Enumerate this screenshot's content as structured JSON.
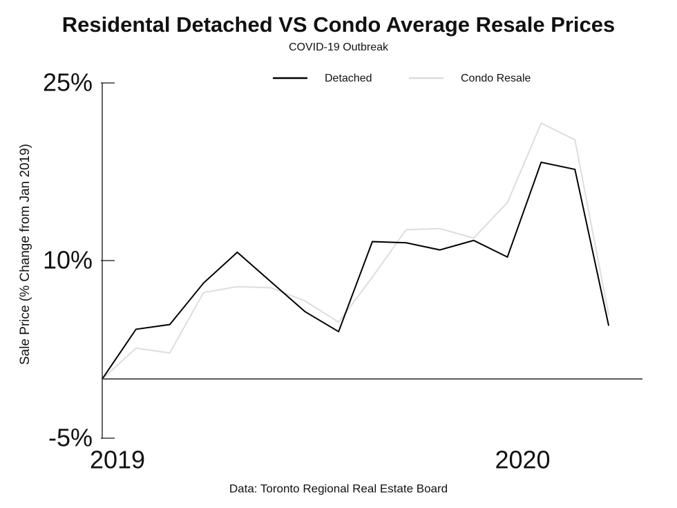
{
  "chart_data": {
    "type": "line",
    "title": "Residental Detached VS Condo Average Resale Prices",
    "subtitle": "COVID-19 Outbreak",
    "y_label": "Sale Price (% Change from Jan 2019)",
    "source": "Data: Toronto Regional Real Estate Board",
    "x": [
      0,
      1,
      2,
      3,
      4,
      5,
      6,
      7,
      8,
      9,
      10,
      11,
      12,
      13,
      14,
      15
    ],
    "xlim": [
      0,
      16
    ],
    "xticks": [
      {
        "value": 0,
        "label": "2019"
      },
      {
        "value": 12,
        "label": "2020"
      }
    ],
    "ylim": [
      -5,
      25
    ],
    "yticks": [
      {
        "value": -5,
        "label": "-5%"
      },
      {
        "value": 10,
        "label": "10%"
      },
      {
        "value": 25,
        "label": "25%"
      }
    ],
    "legend": "top",
    "series": [
      {
        "name": "Detached",
        "color": "#000000",
        "values": [
          0,
          4.2,
          4.6,
          8.1,
          10.7,
          8.2,
          5.7,
          4.0,
          11.6,
          11.5,
          10.9,
          11.7,
          10.3,
          18.3,
          17.7,
          4.5
        ]
      },
      {
        "name": "Condo Resale",
        "color": "#dddddd",
        "values": [
          0,
          2.6,
          2.2,
          7.3,
          7.8,
          7.7,
          6.6,
          4.8,
          8.6,
          12.6,
          12.7,
          11.9,
          14.9,
          21.6,
          20.2,
          5.4
        ]
      }
    ]
  }
}
